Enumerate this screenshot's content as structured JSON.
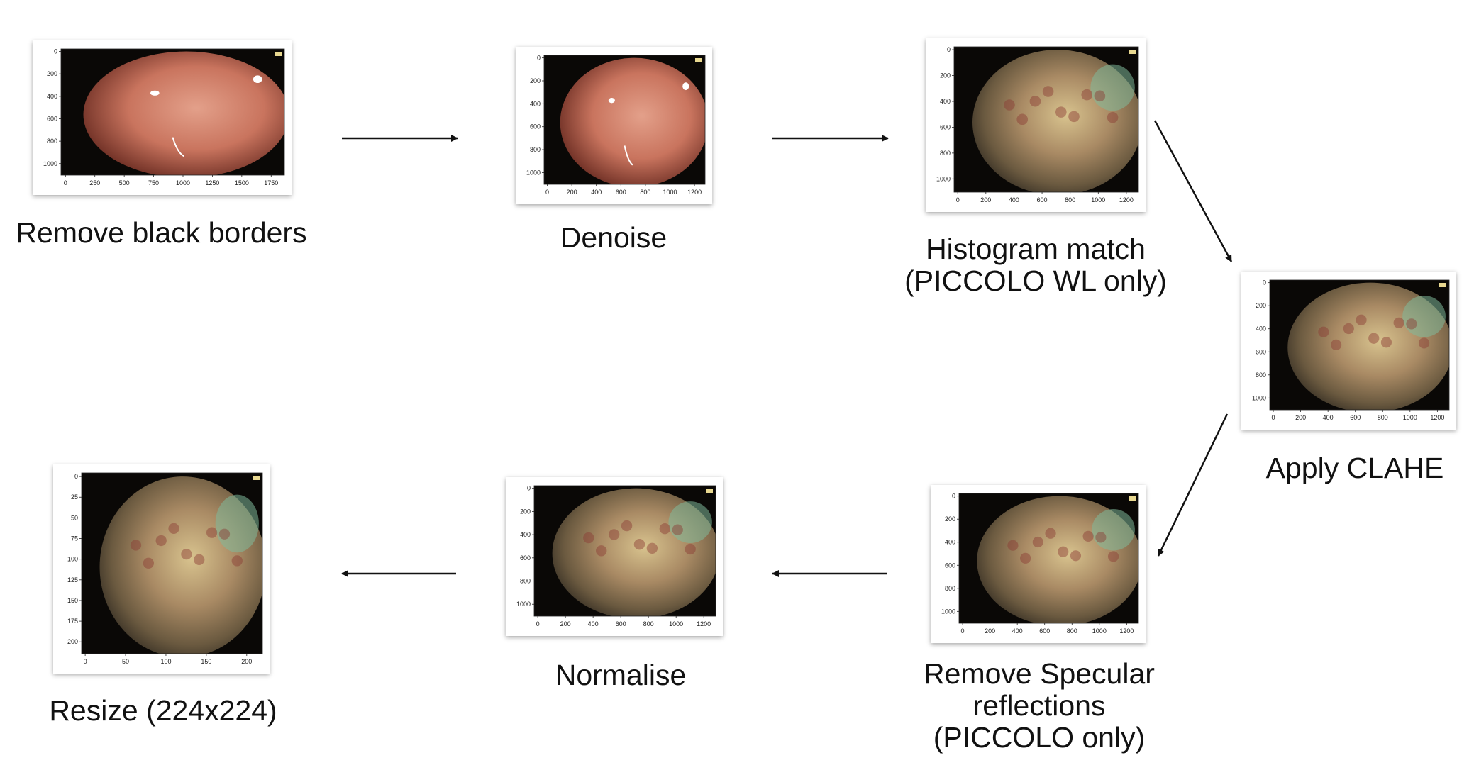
{
  "steps": [
    {
      "id": "remove-black-borders",
      "label_lines": [
        "Remove black borders"
      ],
      "image": {
        "tone": "pink",
        "y_ticks": [
          "0",
          "200",
          "400",
          "600",
          "800",
          "1000"
        ],
        "x_ticks": [
          "0",
          "250",
          "500",
          "750",
          "1000",
          "1250",
          "1500",
          "1750"
        ]
      }
    },
    {
      "id": "denoise",
      "label_lines": [
        "Denoise"
      ],
      "image": {
        "tone": "pink",
        "y_ticks": [
          "0",
          "200",
          "400",
          "600",
          "800",
          "1000"
        ],
        "x_ticks": [
          "0",
          "200",
          "400",
          "600",
          "800",
          "1000",
          "1200"
        ]
      }
    },
    {
      "id": "histogram-match",
      "label_lines": [
        "Histogram match",
        "(PICCOLO WL only)"
      ],
      "image": {
        "tone": "enhanced",
        "y_ticks": [
          "0",
          "200",
          "400",
          "600",
          "800",
          "1000"
        ],
        "x_ticks": [
          "0",
          "200",
          "400",
          "600",
          "800",
          "1000",
          "1200"
        ]
      }
    },
    {
      "id": "apply-clahe",
      "label_lines": [
        "Apply CLAHE"
      ],
      "image": {
        "tone": "enhanced",
        "y_ticks": [
          "0",
          "200",
          "400",
          "600",
          "800",
          "1000"
        ],
        "x_ticks": [
          "0",
          "200",
          "400",
          "600",
          "800",
          "1000",
          "1200"
        ]
      }
    },
    {
      "id": "remove-specular-reflections",
      "label_lines": [
        "Remove Specular",
        "reflections",
        "(PICCOLO only)"
      ],
      "image": {
        "tone": "enhanced",
        "y_ticks": [
          "0",
          "200",
          "400",
          "600",
          "800",
          "1000"
        ],
        "x_ticks": [
          "0",
          "200",
          "400",
          "600",
          "800",
          "1000",
          "1200"
        ]
      }
    },
    {
      "id": "normalise",
      "label_lines": [
        "Normalise"
      ],
      "image": {
        "tone": "enhanced",
        "y_ticks": [
          "0",
          "200",
          "400",
          "600",
          "800",
          "1000"
        ],
        "x_ticks": [
          "0",
          "200",
          "400",
          "600",
          "800",
          "1000",
          "1200"
        ]
      }
    },
    {
      "id": "resize",
      "label_lines": [
        "Resize (224x224)"
      ],
      "image": {
        "tone": "enhanced",
        "y_ticks": [
          "0",
          "25",
          "50",
          "75",
          "100",
          "125",
          "150",
          "175",
          "200"
        ],
        "x_ticks": [
          "0",
          "50",
          "100",
          "150",
          "200"
        ]
      }
    }
  ],
  "arrows": [
    {
      "from": "remove-black-borders",
      "to": "denoise"
    },
    {
      "from": "denoise",
      "to": "histogram-match"
    },
    {
      "from": "histogram-match",
      "to": "apply-clahe"
    },
    {
      "from": "apply-clahe",
      "to": "remove-specular-reflections"
    },
    {
      "from": "remove-specular-reflections",
      "to": "normalise"
    },
    {
      "from": "normalise",
      "to": "resize"
    }
  ]
}
